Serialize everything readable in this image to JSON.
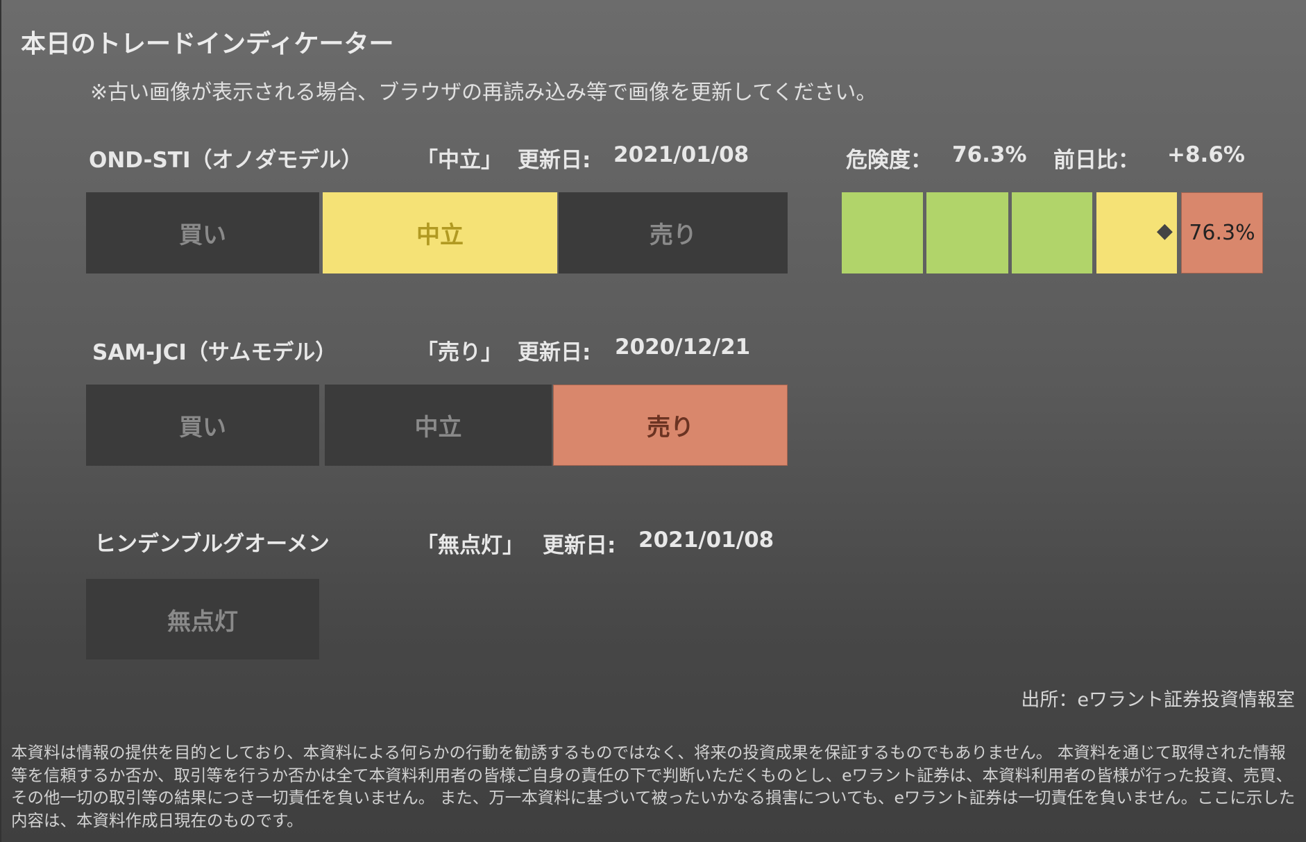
{
  "title": "本日のトレードインディケーター",
  "note": "※古い画像が表示される場合、ブラウザの再読み込み等で画像を更新してください。",
  "colors": {
    "neutral": "#f5e276",
    "sell": "#d9876c",
    "safe": "#b1d46a",
    "inactive": "#3b3b3b"
  },
  "ond": {
    "name": "OND-STI（オノダモデル）",
    "signal": "「中立」",
    "updated_label": "更新日:",
    "updated": "2021/01/08",
    "segments": [
      "買い",
      "中立",
      "売り"
    ],
    "active": "中立",
    "risk_label": "危険度：",
    "risk_value": "76.3%",
    "change_label": "前日比：",
    "change_value": "+8.6%",
    "risk_gauge": {
      "value_percent": 76.3,
      "label": "76.3%",
      "marker_icon": "diamond-icon",
      "levels": [
        "green",
        "green",
        "green",
        "yellow",
        "salmon"
      ]
    }
  },
  "sam": {
    "name": "SAM-JCI（サムモデル）",
    "signal": "「売り」",
    "updated_label": "更新日:",
    "updated": "2020/12/21",
    "segments": [
      "買い",
      "中立",
      "売り"
    ],
    "active": "売り"
  },
  "hindenburg": {
    "name": "ヒンデンブルグオーメン",
    "signal": "「無点灯」",
    "updated_label": "更新日:",
    "updated": "2021/01/08",
    "segments": [
      "無点灯"
    ]
  },
  "source": "出所：eワラント証券投資情報室",
  "disclaimer": "本資料は情報の提供を目的としており、本資料による何らかの行動を勧誘するものではなく、将来の投資成果を保証するものでもありません。 本資料を通じて取得された情報等を信頼するか否か、取引等を行うか否かは全て本資料利用者の皆様ご自身の責任の下で判断いただくものとし、eワラント証券は、本資料利用者の皆様が行った投資、売買、その他一切の取引等の結果につき一切責任を負いません。 また、万一本資料に基づいて被ったいかなる損害についても、eワラント証券は一切責任を負いません。ここに示した内容は、本資料作成日現在のものです。"
}
